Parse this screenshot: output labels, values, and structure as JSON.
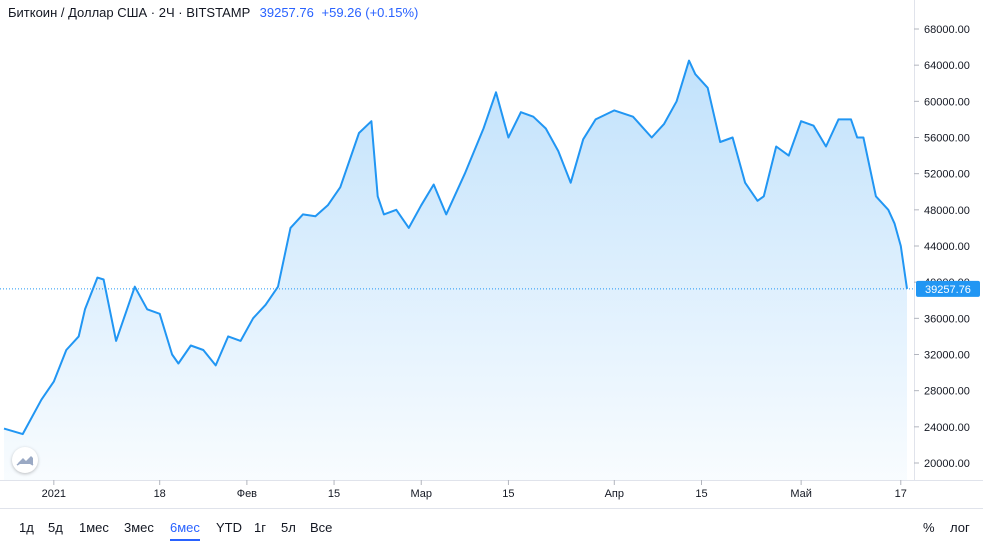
{
  "header": {
    "symbol_title": "Биткоин / Доллар США · 2Ч · BITSTAMP",
    "last_price": "39257.76",
    "change": "+59.26 (+0.15%)"
  },
  "colors": {
    "line": "#2196f3",
    "accent": "#2962ff",
    "grid": "#e0e3eb"
  },
  "chart_data": {
    "type": "area",
    "x": [
      "2020-12-24",
      "2020-12-27",
      "2020-12-30",
      "2021-01-01",
      "2021-01-03",
      "2021-01-05",
      "2021-01-06",
      "2021-01-08",
      "2021-01-09",
      "2021-01-11",
      "2021-01-12",
      "2021-01-14",
      "2021-01-16",
      "2021-01-18",
      "2021-01-20",
      "2021-01-21",
      "2021-01-23",
      "2021-01-25",
      "2021-01-27",
      "2021-01-29",
      "2021-01-31",
      "2021-02-02",
      "2021-02-04",
      "2021-02-06",
      "2021-02-08",
      "2021-02-10",
      "2021-02-12",
      "2021-02-14",
      "2021-02-16",
      "2021-02-19",
      "2021-02-21",
      "2021-02-22",
      "2021-02-23",
      "2021-02-25",
      "2021-02-27",
      "2021-03-01",
      "2021-03-03",
      "2021-03-05",
      "2021-03-08",
      "2021-03-11",
      "2021-03-13",
      "2021-03-15",
      "2021-03-17",
      "2021-03-19",
      "2021-03-21",
      "2021-03-23",
      "2021-03-25",
      "2021-03-27",
      "2021-03-29",
      "2021-04-01",
      "2021-04-04",
      "2021-04-07",
      "2021-04-09",
      "2021-04-11",
      "2021-04-13",
      "2021-04-14",
      "2021-04-16",
      "2021-04-18",
      "2021-04-20",
      "2021-04-22",
      "2021-04-24",
      "2021-04-25",
      "2021-04-27",
      "2021-04-29",
      "2021-05-01",
      "2021-05-03",
      "2021-05-05",
      "2021-05-07",
      "2021-05-09",
      "2021-05-10",
      "2021-05-11",
      "2021-05-13",
      "2021-05-15",
      "2021-05-16",
      "2021-05-17",
      "2021-05-18"
    ],
    "values": [
      23800,
      23200,
      27000,
      29000,
      32500,
      34000,
      37000,
      40500,
      40300,
      33500,
      35500,
      39500,
      37000,
      36500,
      32000,
      31000,
      33000,
      32500,
      30800,
      34000,
      33500,
      36000,
      37500,
      39500,
      46000,
      47500,
      47300,
      48500,
      50500,
      56500,
      57800,
      49500,
      47500,
      48000,
      46000,
      48500,
      50800,
      47500,
      52000,
      57000,
      61000,
      56000,
      58800,
      58300,
      57000,
      54500,
      51000,
      55800,
      58000,
      59000,
      58300,
      56000,
      57500,
      60000,
      64500,
      63000,
      61500,
      55500,
      56000,
      51000,
      49000,
      49500,
      55000,
      54000,
      57800,
      57300,
      55000,
      58000,
      58000,
      56000,
      56000,
      49500,
      48000,
      46500,
      44000,
      39257.76
    ],
    "last_price": 39257.76,
    "y_ticks": [
      "20000.00",
      "24000.00",
      "28000.00",
      "32000.00",
      "36000.00",
      "40000.00",
      "44000.00",
      "48000.00",
      "52000.00",
      "56000.00",
      "60000.00",
      "64000.00",
      "68000.00"
    ],
    "x_ticks": [
      {
        "date": "2021-01-01",
        "label": "2021"
      },
      {
        "date": "2021-01-18",
        "label": "18"
      },
      {
        "date": "2021-02-01",
        "label": "Фев"
      },
      {
        "date": "2021-02-15",
        "label": "15"
      },
      {
        "date": "2021-03-01",
        "label": "Мар"
      },
      {
        "date": "2021-03-15",
        "label": "15"
      },
      {
        "date": "2021-04-01",
        "label": "Апр"
      },
      {
        "date": "2021-04-15",
        "label": "15"
      },
      {
        "date": "2021-05-01",
        "label": "Май"
      },
      {
        "date": "2021-05-17",
        "label": "17"
      }
    ],
    "y_range": [
      18000,
      70000
    ],
    "grid": false
  },
  "toolbar": {
    "ranges": [
      "1д",
      "5д",
      "1мес",
      "3мес",
      "6мес",
      "YTD",
      "1г",
      "5л",
      "Все"
    ],
    "active_range": "6мес",
    "percent_label": "%",
    "log_label": "лог"
  }
}
